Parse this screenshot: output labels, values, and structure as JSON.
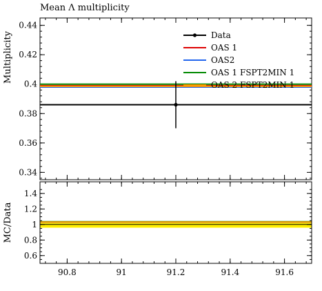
{
  "chart_data": [
    {
      "type": "line",
      "title": "Mean Λ multiplicity",
      "xlabel": "",
      "ylabel": "Multiplicity",
      "xlim": [
        90.7,
        91.7
      ],
      "ylim": [
        0.335,
        0.445
      ],
      "x_ticks": [
        90.8,
        91.0,
        91.2,
        91.4,
        91.6
      ],
      "x_tick_labels": [
        "90.8",
        "91",
        "91.2",
        "91.4",
        "91.6"
      ],
      "y_ticks": [
        0.34,
        0.36,
        0.38,
        0.4,
        0.42,
        0.44
      ],
      "y_tick_labels": [
        "0.34",
        "0.36",
        "0.38",
        "0.4",
        "0.42",
        "0.44"
      ],
      "legend_position": "top-right",
      "data_point": {
        "name": "Data",
        "x": 91.2,
        "y": 0.386,
        "yerr_low": 0.37,
        "yerr_high": 0.402,
        "color": "#000000"
      },
      "series": [
        {
          "name": "Data",
          "y": 0.386,
          "color": "#000000",
          "style": "line-with-point"
        },
        {
          "name": "OAS 1",
          "y": 0.399,
          "color": "#dd0000",
          "style": "line"
        },
        {
          "name": "OAS2",
          "y": 0.398,
          "color": "#2266ee",
          "style": "line"
        },
        {
          "name": "OAS 1 FSPT2MIN 1",
          "y": 0.4,
          "color": "#008800",
          "style": "line"
        },
        {
          "name": "OAS 2 FSPT2MIN 1",
          "y": 0.3985,
          "color": "#ff9900",
          "style": "line"
        }
      ],
      "grid": false
    },
    {
      "type": "line",
      "title": "",
      "xlabel": "",
      "ylabel": "MC/Data",
      "xlim": [
        90.7,
        91.7
      ],
      "ylim": [
        0.5,
        1.55
      ],
      "y_ticks": [
        0.6,
        0.8,
        1.0,
        1.2,
        1.4
      ],
      "y_tick_labels": [
        "0.6",
        "0.8",
        "1",
        "1.2",
        "1.4"
      ],
      "band": {
        "low": 0.959,
        "high": 1.041,
        "color": "#ffee00"
      },
      "series": [
        {
          "name": "Data",
          "y": 1.0,
          "color": "#000000"
        },
        {
          "name": "OAS 1",
          "y": 1.034,
          "color": "#dd0000"
        },
        {
          "name": "OAS2",
          "y": 1.031,
          "color": "#2266ee"
        },
        {
          "name": "OAS 1 FSPT2MIN 1",
          "y": 1.036,
          "color": "#008800"
        },
        {
          "name": "OAS 2 FSPT2MIN 1",
          "y": 1.032,
          "color": "#ff9900"
        }
      ],
      "grid": false
    }
  ]
}
